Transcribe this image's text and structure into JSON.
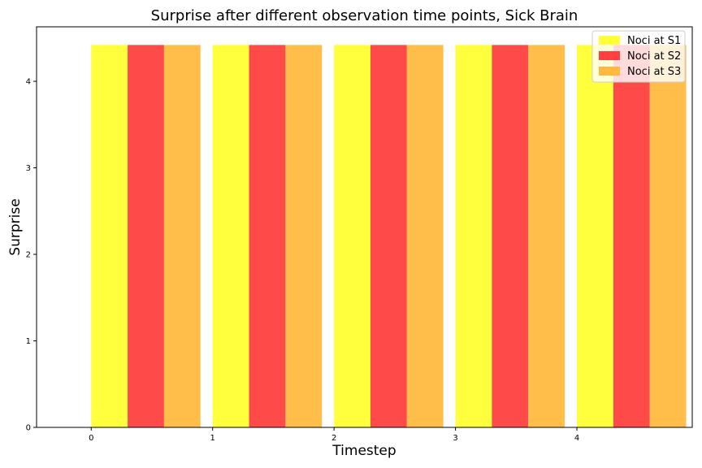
{
  "chart_data": {
    "type": "bar",
    "title": "Surprise after different observation time points, Sick Brain",
    "xlabel": "Timestep",
    "ylabel": "Surprise",
    "categories": [
      "0",
      "1",
      "2",
      "3",
      "4"
    ],
    "yticks": [
      "0",
      "1",
      "2",
      "3",
      "4"
    ],
    "ylim": [
      0,
      4.63
    ],
    "xlim": [
      -0.45,
      4.95
    ],
    "legend_position": "top-right",
    "series": [
      {
        "name": "Noci at S1",
        "color": "#ffff33",
        "values": [
          4.42,
          4.42,
          4.42,
          4.42,
          4.42
        ]
      },
      {
        "name": "Noci at S2",
        "color": "#ff4040",
        "values": [
          4.42,
          4.42,
          4.42,
          4.42,
          4.42
        ]
      },
      {
        "name": "Noci at S3",
        "color": "#ffb940",
        "values": [
          4.42,
          4.42,
          4.42,
          4.42,
          4.42
        ]
      }
    ]
  }
}
